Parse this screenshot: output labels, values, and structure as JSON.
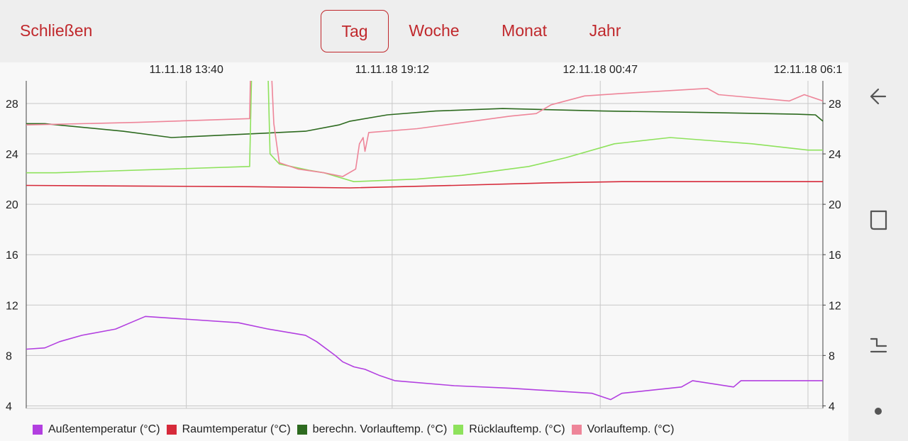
{
  "toolbar": {
    "close_label": "Schließen",
    "tabs": [
      {
        "label": "Tag",
        "active": true
      },
      {
        "label": "Woche",
        "active": false
      },
      {
        "label": "Monat",
        "active": false
      },
      {
        "label": "Jahr",
        "active": false
      }
    ]
  },
  "navigation_bar": {
    "icons": [
      "back-arrow-icon",
      "recent-apps-icon",
      "recents-corner-icon",
      "home-dot-icon"
    ]
  },
  "colors": {
    "accent": "#c0282c",
    "grid": "#c8c8c8"
  },
  "chart_data": {
    "type": "line",
    "title": "",
    "x_axis": {
      "position": "top",
      "tick_labels": [
        "11.11.18 13:40",
        "11.11.18 19:12",
        "12.11.18 00:47",
        "12.11.18 06:1"
      ],
      "tick_hours": [
        4.3,
        9.83,
        15.42,
        21.0
      ],
      "range_hours": [
        0,
        21.4
      ]
    },
    "y_axis": {
      "ticks": [
        4,
        8,
        12,
        16,
        20,
        24,
        28
      ],
      "range": [
        3.8,
        29.8
      ],
      "both_sides": true
    },
    "grid": true,
    "legend_position": "bottom",
    "series": [
      {
        "name": "Außentemperatur (°C)",
        "color": "#b23fe0",
        "points": [
          [
            0,
            8.5
          ],
          [
            0.5,
            8.6
          ],
          [
            0.9,
            9.1
          ],
          [
            1.5,
            9.6
          ],
          [
            2.4,
            10.1
          ],
          [
            2.8,
            10.6
          ],
          [
            3.2,
            11.1
          ],
          [
            5.7,
            10.6
          ],
          [
            6.5,
            10.1
          ],
          [
            7.5,
            9.6
          ],
          [
            7.8,
            9.1
          ],
          [
            8.3,
            8.0
          ],
          [
            8.5,
            7.5
          ],
          [
            8.8,
            7.1
          ],
          [
            9.1,
            6.9
          ],
          [
            9.5,
            6.4
          ],
          [
            9.9,
            6.0
          ],
          [
            11.5,
            5.6
          ],
          [
            13.0,
            5.4
          ],
          [
            15.2,
            5.0
          ],
          [
            15.7,
            4.5
          ],
          [
            16.0,
            5.0
          ],
          [
            17.6,
            5.5
          ],
          [
            17.9,
            6.0
          ],
          [
            19.0,
            5.5
          ],
          [
            19.2,
            6.0
          ],
          [
            21.4,
            6.0
          ]
        ]
      },
      {
        "name": "Raumtemperatur (°C)",
        "color": "#d62a3a",
        "points": [
          [
            0,
            21.5
          ],
          [
            3.0,
            21.45
          ],
          [
            6.0,
            21.4
          ],
          [
            8.7,
            21.3
          ],
          [
            11.5,
            21.5
          ],
          [
            14.0,
            21.7
          ],
          [
            16.0,
            21.8
          ],
          [
            21.4,
            21.8
          ]
        ]
      },
      {
        "name": "berechn. Vorlauftemp. (°C)",
        "color": "#2d6a1f",
        "points": [
          [
            0,
            26.4
          ],
          [
            0.5,
            26.4
          ],
          [
            2.6,
            25.8
          ],
          [
            3.9,
            25.3
          ],
          [
            7.5,
            25.8
          ],
          [
            8.4,
            26.3
          ],
          [
            8.7,
            26.6
          ],
          [
            9.7,
            27.1
          ],
          [
            11.0,
            27.4
          ],
          [
            12.8,
            27.6
          ],
          [
            15.5,
            27.4
          ],
          [
            18.0,
            27.3
          ],
          [
            20.7,
            27.15
          ],
          [
            21.2,
            27.1
          ],
          [
            21.4,
            26.6
          ]
        ]
      },
      {
        "name": "Rücklauftemp. (°C)",
        "color": "#8ee25c",
        "points": [
          [
            0,
            22.5
          ],
          [
            0.8,
            22.5
          ],
          [
            6.0,
            23.0
          ],
          [
            6.05,
            29.8
          ],
          null,
          [
            6.5,
            29.8
          ],
          [
            6.55,
            24.0
          ],
          [
            6.8,
            23.2
          ],
          [
            7.6,
            22.7
          ],
          [
            8.0,
            22.5
          ],
          [
            8.8,
            21.8
          ],
          [
            10.5,
            22.0
          ],
          [
            11.7,
            22.3
          ],
          [
            13.5,
            23.0
          ],
          [
            14.5,
            23.7
          ],
          [
            15.8,
            24.8
          ],
          [
            17.3,
            25.3
          ],
          [
            19.5,
            24.8
          ],
          [
            21.0,
            24.3
          ],
          [
            21.4,
            24.3
          ]
        ]
      },
      {
        "name": "Vorlauftemp. (°C)",
        "color": "#ee8599",
        "points": [
          [
            0,
            26.3
          ],
          [
            3.0,
            26.5
          ],
          [
            6.0,
            26.8
          ],
          [
            6.02,
            29.8
          ],
          null,
          [
            6.6,
            29.8
          ],
          [
            6.65,
            26.4
          ],
          [
            6.75,
            24.3
          ],
          [
            6.8,
            23.3
          ],
          [
            7.3,
            22.8
          ],
          [
            8.0,
            22.5
          ],
          [
            8.5,
            22.2
          ],
          [
            8.85,
            22.8
          ],
          [
            8.95,
            24.8
          ],
          [
            9.05,
            25.3
          ],
          [
            9.1,
            24.2
          ],
          [
            9.2,
            25.7
          ],
          [
            10.5,
            26.0
          ],
          [
            12.0,
            26.6
          ],
          [
            13.0,
            27.0
          ],
          [
            13.7,
            27.2
          ],
          [
            14.1,
            27.9
          ],
          [
            15.0,
            28.6
          ],
          [
            16.0,
            28.8
          ],
          [
            18.3,
            29.2
          ],
          [
            18.6,
            28.7
          ],
          [
            20.5,
            28.2
          ],
          [
            20.9,
            28.7
          ],
          [
            21.4,
            28.2
          ]
        ]
      }
    ]
  }
}
